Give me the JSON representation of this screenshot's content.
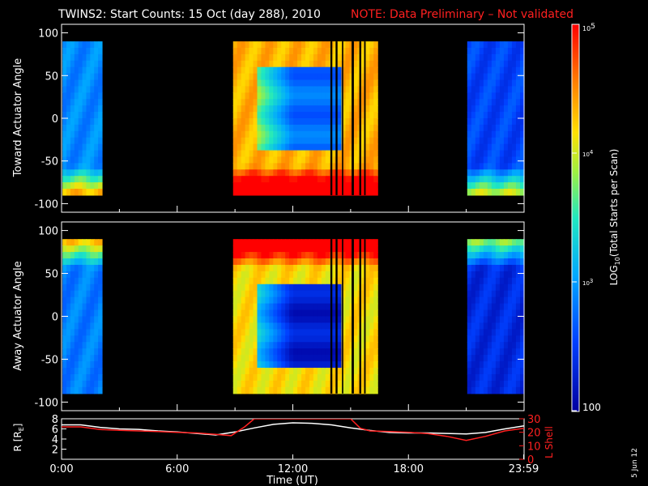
{
  "title": {
    "main": "TWINS2: Start Counts: 15 Oct (day 288), 2010",
    "note": "NOTE: Data Preliminary – Not validated"
  },
  "date_stamp": "5 Jun 12",
  "colors": {
    "note": "#ff2020",
    "lshell": "#ff2020",
    "rline": "#ffffff",
    "frame": "#ffffff"
  },
  "chart_data": [
    {
      "type": "heatmap",
      "id": "toward",
      "ylabel": "Toward Actuator Angle",
      "ylim": [
        -110,
        110
      ],
      "yticks": [
        100,
        50,
        0,
        -50,
        -100
      ],
      "xlim_hours": [
        0,
        24
      ],
      "data_rows_deg": [
        -90,
        90
      ],
      "segments": [
        {
          "t0": 0.05,
          "t1": 2.1,
          "base": 0.3,
          "edge": "bottom"
        },
        {
          "t0": 8.9,
          "t1": 16.4,
          "base": 0.78,
          "edge": "bottom",
          "low_center": 0.25
        },
        {
          "t0": 21.05,
          "t1": 24.0,
          "base": 0.18,
          "edge": "bottom"
        }
      ],
      "gaps_hours": [
        [
          13.95,
          14.05
        ],
        [
          14.22,
          14.32
        ],
        [
          14.55,
          14.62
        ],
        [
          15.05,
          15.17
        ],
        [
          15.45,
          15.55
        ],
        [
          15.7,
          15.78
        ]
      ]
    },
    {
      "type": "heatmap",
      "id": "away",
      "ylabel": "Away Actuator Angle",
      "ylim": [
        -110,
        110
      ],
      "yticks": [
        100,
        50,
        0,
        -50,
        -100
      ],
      "xlim_hours": [
        0,
        24
      ],
      "data_rows_deg": [
        -90,
        90
      ],
      "segments": [
        {
          "t0": 0.05,
          "t1": 2.1,
          "base": 0.28,
          "edge": "top"
        },
        {
          "t0": 8.9,
          "t1": 16.4,
          "base": 0.72,
          "edge": "top",
          "low_center": 0.08
        },
        {
          "t0": 21.05,
          "t1": 24.0,
          "base": 0.12,
          "edge": "top"
        }
      ],
      "gaps_hours": [
        [
          13.95,
          14.05
        ],
        [
          14.22,
          14.32
        ],
        [
          14.55,
          14.62
        ],
        [
          15.05,
          15.17
        ],
        [
          15.45,
          15.55
        ],
        [
          15.7,
          15.78
        ]
      ]
    },
    {
      "type": "line",
      "id": "orbit",
      "left_axis": {
        "label": "R [R",
        "label_sub": "E",
        "label_close": "]",
        "ylim": [
          0,
          8
        ],
        "ticks": [
          2,
          4,
          6,
          8
        ]
      },
      "right_axis": {
        "label": "L Shell",
        "ylim": [
          0,
          30
        ],
        "ticks": [
          0,
          10,
          20,
          30
        ]
      },
      "xlabel": "Time (UT)",
      "xticks": [
        {
          "h": 0,
          "label": "0:00"
        },
        {
          "h": 6,
          "label": "6:00"
        },
        {
          "h": 12,
          "label": "12:00"
        },
        {
          "h": 18,
          "label": "18:00"
        },
        {
          "h": 23.98,
          "label": "23:59"
        }
      ],
      "series": [
        {
          "axis": "left",
          "x": [
            0,
            1,
            2,
            3,
            4,
            5,
            6,
            7,
            8,
            9,
            10,
            11,
            12,
            13,
            14,
            15,
            16,
            17,
            18,
            19,
            20,
            21,
            22,
            23,
            24
          ],
          "values": [
            6.8,
            6.8,
            6.3,
            6.0,
            5.9,
            5.6,
            5.4,
            5.1,
            4.8,
            5.4,
            6.2,
            6.9,
            7.2,
            7.1,
            6.8,
            6.2,
            5.7,
            5.3,
            5.2,
            5.2,
            5.1,
            5.0,
            5.3,
            6.0,
            6.6
          ]
        },
        {
          "axis": "right",
          "x": [
            0,
            1,
            2,
            3,
            4,
            5,
            6,
            7,
            8,
            8.8,
            9.5,
            10.0,
            15.0,
            15.5,
            16,
            17,
            18,
            19,
            20,
            21,
            22,
            23,
            24
          ],
          "values": [
            24,
            24,
            22,
            21.5,
            21,
            20.5,
            20,
            19.5,
            18.5,
            17.5,
            24,
            30,
            30,
            23,
            21,
            20.5,
            20,
            19,
            17,
            14,
            17,
            21,
            23
          ]
        }
      ]
    }
  ],
  "colorbar": {
    "label": "LOG",
    "label_sub": "10",
    "label_rest": "(Total Starts per Scan)",
    "tick_top_base": "10",
    "tick_top_exp": "5",
    "tick_mid_base": "10",
    "tick_mid_exp": "4",
    "tick_low_base": "10",
    "tick_low_exp": "3",
    "tick_bottom": "100",
    "range": [
      2,
      5
    ]
  }
}
